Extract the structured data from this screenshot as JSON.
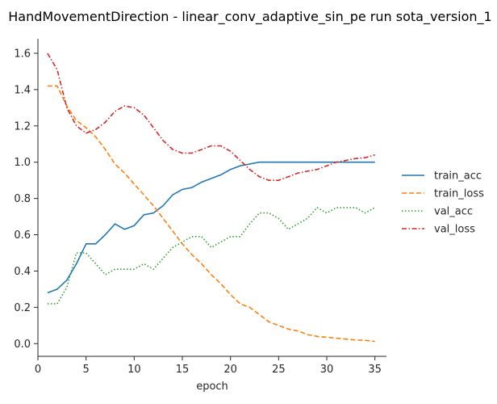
{
  "chart_data": {
    "type": "line",
    "title": "HandMovementDirection - linear_conv_adaptive_sin_pe run sota_version_1",
    "xlabel": "epoch",
    "ylabel": "",
    "xlim": [
      0,
      36.2
    ],
    "ylim": [
      -0.07,
      1.68
    ],
    "xticks": [
      0,
      5,
      10,
      15,
      20,
      25,
      30,
      35
    ],
    "yticks": [
      0.0,
      0.2,
      0.4,
      0.6,
      0.8,
      1.0,
      1.2,
      1.4,
      1.6
    ],
    "grid": false,
    "legend_position": "right",
    "x": [
      1,
      2,
      3,
      4,
      5,
      6,
      7,
      8,
      9,
      10,
      11,
      12,
      13,
      14,
      15,
      16,
      17,
      18,
      19,
      20,
      21,
      22,
      23,
      24,
      25,
      26,
      27,
      28,
      29,
      30,
      31,
      32,
      33,
      34,
      35
    ],
    "series": [
      {
        "name": "train_acc",
        "color": "#1f77b4",
        "dash": "solid",
        "values": [
          0.28,
          0.3,
          0.35,
          0.44,
          0.55,
          0.55,
          0.6,
          0.66,
          0.63,
          0.65,
          0.71,
          0.72,
          0.76,
          0.82,
          0.85,
          0.86,
          0.89,
          0.91,
          0.93,
          0.96,
          0.98,
          0.99,
          1.0,
          1.0,
          1.0,
          1.0,
          1.0,
          1.0,
          1.0,
          1.0,
          1.0,
          1.0,
          1.0,
          1.0,
          1.0
        ]
      },
      {
        "name": "train_loss",
        "color": "#ff7f0e",
        "dash": "dashed",
        "values": [
          1.42,
          1.42,
          1.31,
          1.23,
          1.19,
          1.14,
          1.07,
          0.99,
          0.94,
          0.88,
          0.82,
          0.76,
          0.69,
          0.62,
          0.55,
          0.49,
          0.44,
          0.38,
          0.33,
          0.27,
          0.22,
          0.2,
          0.16,
          0.12,
          0.1,
          0.08,
          0.07,
          0.05,
          0.04,
          0.035,
          0.03,
          0.025,
          0.02,
          0.018,
          0.012
        ]
      },
      {
        "name": "val_acc",
        "color": "#2ca02c",
        "dash": "dotted",
        "values": [
          0.22,
          0.22,
          0.31,
          0.5,
          0.5,
          0.44,
          0.38,
          0.41,
          0.41,
          0.41,
          0.44,
          0.41,
          0.47,
          0.53,
          0.56,
          0.59,
          0.59,
          0.53,
          0.56,
          0.59,
          0.59,
          0.66,
          0.72,
          0.72,
          0.69,
          0.63,
          0.66,
          0.69,
          0.75,
          0.72,
          0.75,
          0.75,
          0.75,
          0.72,
          0.75
        ]
      },
      {
        "name": "val_loss",
        "color": "#d62728",
        "dash": "dashdot",
        "values": [
          1.6,
          1.51,
          1.3,
          1.2,
          1.16,
          1.18,
          1.22,
          1.28,
          1.31,
          1.3,
          1.26,
          1.19,
          1.12,
          1.07,
          1.05,
          1.05,
          1.07,
          1.09,
          1.09,
          1.06,
          1.01,
          0.96,
          0.92,
          0.9,
          0.9,
          0.92,
          0.94,
          0.95,
          0.96,
          0.98,
          1.0,
          1.01,
          1.02,
          1.025,
          1.04
        ]
      }
    ]
  }
}
